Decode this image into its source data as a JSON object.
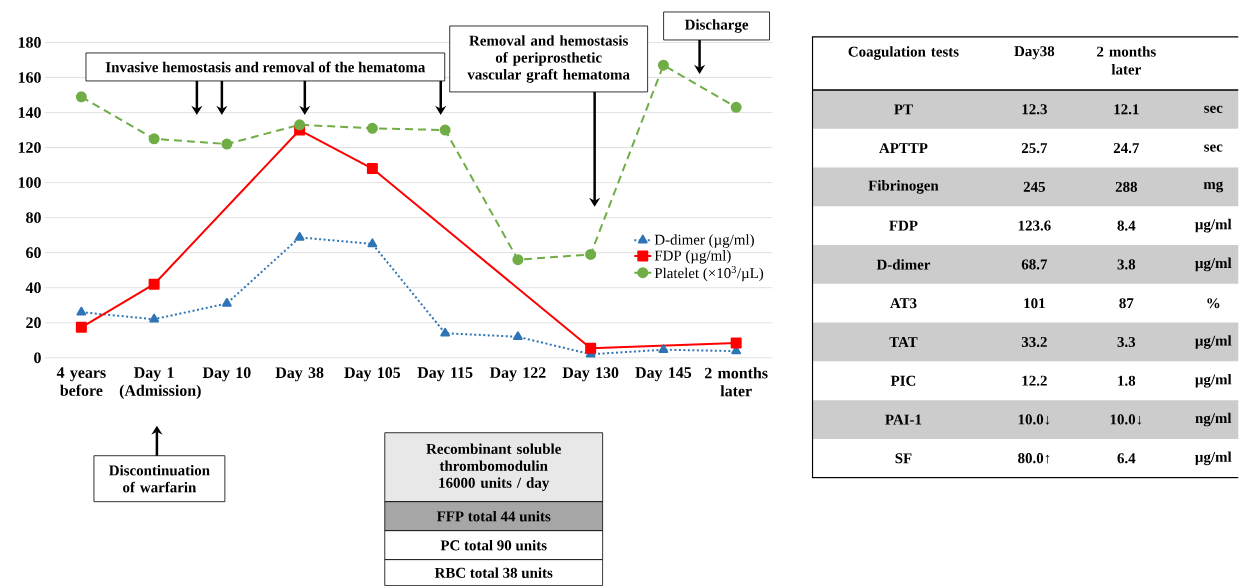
{
  "chart_data": [
    {
      "type": "line",
      "categories": [
        "4 years before",
        "Day 1 (Admission)",
        "Day 10",
        "Day 38",
        "Day 105",
        "Day 115",
        "Day 122",
        "Day 130",
        "Day 145",
        "2 months later"
      ],
      "series": [
        {
          "name": "D-dimer (µg/ml)",
          "color": "#2e75b6",
          "marker": "triangle",
          "line_style": "dotted",
          "values": [
            26,
            22,
            31,
            68.7,
            65,
            14,
            12,
            2,
            4.6,
            3.8
          ]
        },
        {
          "name": "FDP (µg/ml)",
          "color": "#ff0000",
          "marker": "square",
          "line_style": "solid",
          "values": [
            17.4,
            42,
            null,
            130,
            108,
            null,
            null,
            5.4,
            null,
            8.4
          ]
        },
        {
          "name": "Platelet (×10$^{3}$/µL)",
          "color": "#70ad47",
          "marker": "circle",
          "line_style": "dashed",
          "values": [
            149,
            125,
            122,
            133,
            131,
            130,
            56,
            59,
            167,
            143
          ]
        }
      ],
      "ylim": [
        0,
        180
      ],
      "yticks": [
        0,
        20,
        40,
        60,
        80,
        100,
        120,
        140,
        160,
        180
      ],
      "grid": "y",
      "legend": "right",
      "annotations": [
        "Invasive hemostasis and removal of the hematoma",
        "Removal and hemostasis of  periprosthetic vascular graft hematoma",
        "Discharge",
        "Discontinuation of warfarin",
        "Recombinant soluble thrombomodulin 16000 units / day",
        "FFP total  44 units",
        "PC total 90 units",
        "RBC total 38 units"
      ]
    },
    {
      "type": "other",
      "categories": [
        "Coagulation tests",
        "Day38",
        "2 months later",
        null
      ],
      "y_categories": [
        "PT",
        "APTTP",
        "Fibrinogen",
        "FDP",
        "D-dimer",
        "AT3",
        "TAT",
        "PIC",
        "PAI-1",
        "SF"
      ],
      "cell_labels": [
        [
          "12.3",
          "12.1",
          "sec"
        ],
        [
          "25.7",
          "24.7",
          "sec"
        ],
        [
          "245",
          "288",
          "mg"
        ],
        [
          "123.6",
          "8.4",
          "µg/ml"
        ],
        [
          "68.7",
          "3.8",
          "µg/ml"
        ],
        [
          "101",
          "87",
          "%"
        ],
        [
          "33.2",
          "3.3",
          "µg/ml"
        ],
        [
          "12.2",
          "1.8",
          "µg/ml"
        ],
        [
          "10.0↓",
          "10.0↓",
          "ng/ml"
        ],
        [
          "80.0↑",
          "6.4",
          "µg/ml"
        ]
      ]
    }
  ]
}
